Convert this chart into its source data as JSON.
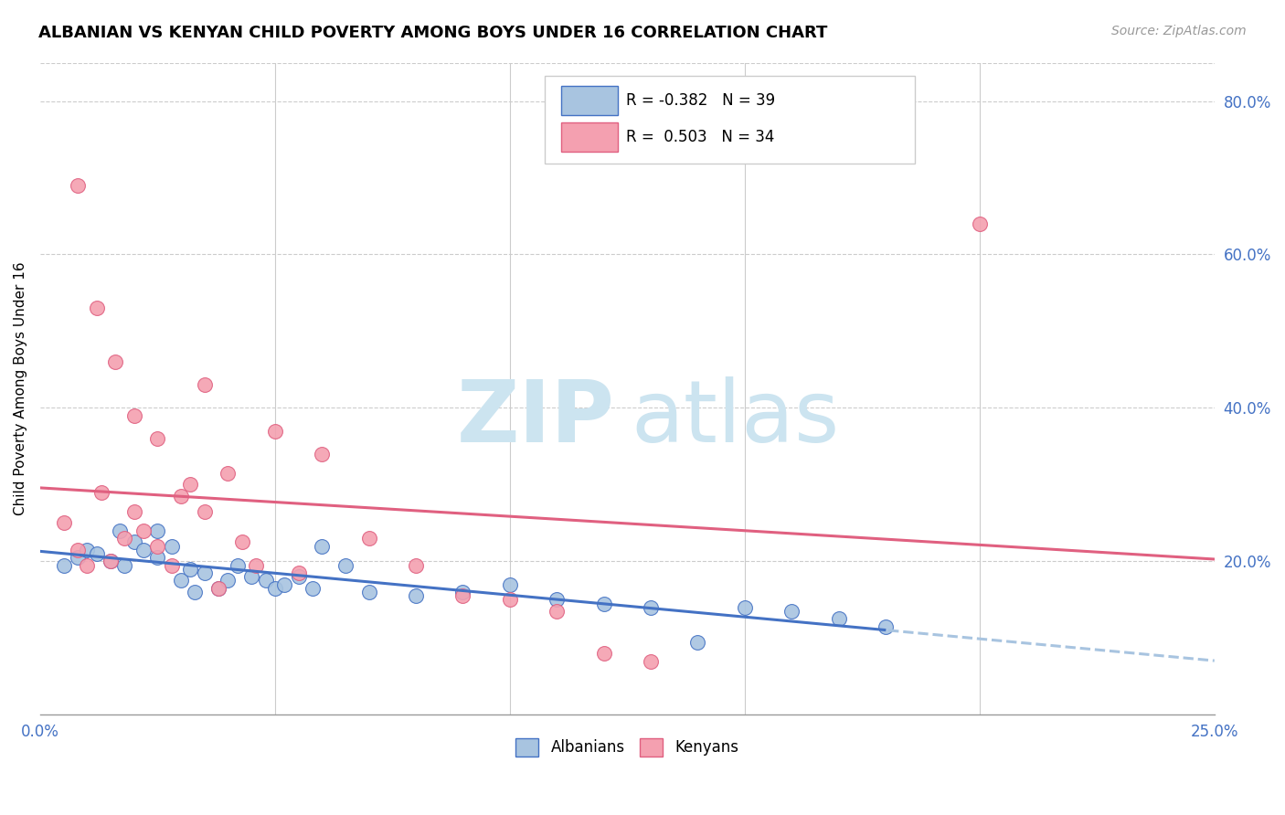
{
  "title": "ALBANIAN VS KENYAN CHILD POVERTY AMONG BOYS UNDER 16 CORRELATION CHART",
  "source": "Source: ZipAtlas.com",
  "ylabel": "Child Poverty Among Boys Under 16",
  "xlim": [
    0.0,
    0.25
  ],
  "ylim": [
    0.0,
    0.85
  ],
  "xticks": [
    0.0,
    0.05,
    0.1,
    0.15,
    0.2,
    0.25
  ],
  "yticks_right": [
    0.0,
    0.2,
    0.4,
    0.6,
    0.8
  ],
  "ytick_labels_right": [
    "",
    "20.0%",
    "40.0%",
    "60.0%",
    "80.0%"
  ],
  "xtick_labels": [
    "0.0%",
    "",
    "",
    "",
    "",
    "25.0%"
  ],
  "Albanian_R": "-0.382",
  "Albanian_N": "39",
  "Kenyan_R": "0.503",
  "Kenyan_N": "34",
  "color_albanian": "#a8c4e0",
  "color_kenyan": "#f4a0b0",
  "color_albanian_line": "#4472c4",
  "color_kenyan_line": "#e06080",
  "color_albanian_dashed": "#a8c4e0",
  "watermark_zip_color": "#cce4f0",
  "watermark_atlas_color": "#cce4f0",
  "albanian_scatter_x": [
    0.005,
    0.008,
    0.01,
    0.012,
    0.015,
    0.018,
    0.02,
    0.022,
    0.025,
    0.028,
    0.03,
    0.032,
    0.035,
    0.038,
    0.04,
    0.042,
    0.045,
    0.048,
    0.05,
    0.052,
    0.055,
    0.058,
    0.06,
    0.065,
    0.07,
    0.08,
    0.09,
    0.1,
    0.11,
    0.12,
    0.13,
    0.14,
    0.15,
    0.16,
    0.17,
    0.18,
    0.017,
    0.025,
    0.033
  ],
  "albanian_scatter_y": [
    0.195,
    0.205,
    0.215,
    0.21,
    0.2,
    0.195,
    0.225,
    0.215,
    0.205,
    0.22,
    0.175,
    0.19,
    0.185,
    0.165,
    0.175,
    0.195,
    0.18,
    0.175,
    0.165,
    0.17,
    0.18,
    0.165,
    0.22,
    0.195,
    0.16,
    0.155,
    0.16,
    0.17,
    0.15,
    0.145,
    0.14,
    0.095,
    0.14,
    0.135,
    0.125,
    0.115,
    0.24,
    0.24,
    0.16
  ],
  "kenyan_scatter_x": [
    0.005,
    0.008,
    0.01,
    0.013,
    0.015,
    0.018,
    0.02,
    0.022,
    0.025,
    0.028,
    0.03,
    0.032,
    0.035,
    0.04,
    0.043,
    0.046,
    0.05,
    0.055,
    0.06,
    0.07,
    0.08,
    0.09,
    0.1,
    0.11,
    0.12,
    0.13,
    0.035,
    0.008,
    0.012,
    0.016,
    0.02,
    0.025,
    0.2,
    0.038
  ],
  "kenyan_scatter_y": [
    0.25,
    0.215,
    0.195,
    0.29,
    0.2,
    0.23,
    0.265,
    0.24,
    0.22,
    0.195,
    0.285,
    0.3,
    0.265,
    0.315,
    0.225,
    0.195,
    0.37,
    0.185,
    0.34,
    0.23,
    0.195,
    0.155,
    0.15,
    0.135,
    0.08,
    0.07,
    0.43,
    0.69,
    0.53,
    0.46,
    0.39,
    0.36,
    0.64,
    0.165
  ]
}
